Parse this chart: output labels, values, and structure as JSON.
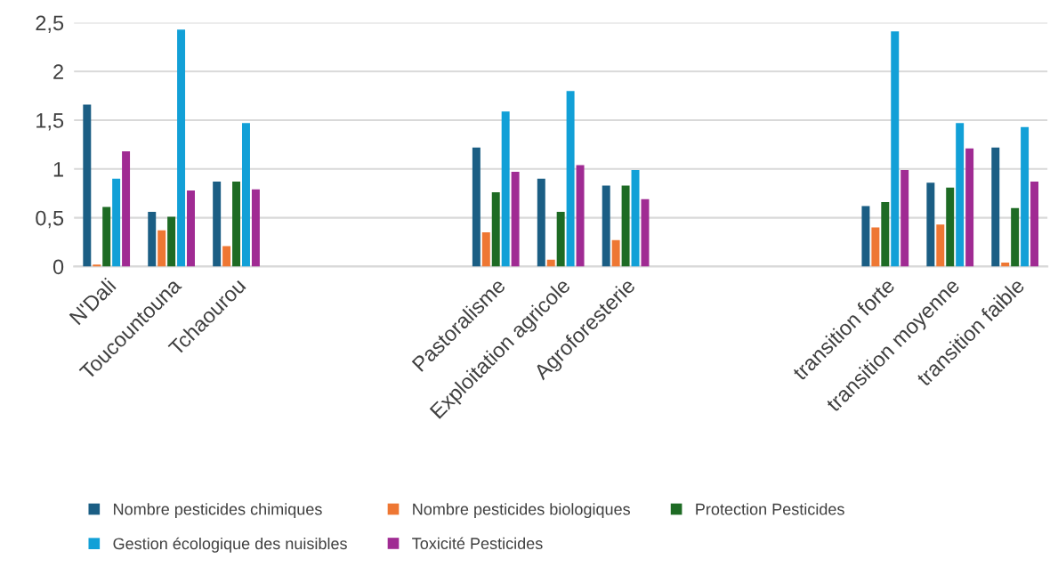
{
  "chart_data": {
    "type": "bar",
    "categories": [
      "N'Dali",
      "Toucountouna",
      "Tchaourou",
      null,
      null,
      null,
      "Pastoralisme",
      "Exploitation agricole",
      "Agroforesterie",
      null,
      null,
      null,
      "transition forte",
      "transition moyenne",
      "transition faible"
    ],
    "series": [
      {
        "name": "Nombre pesticides chimiques",
        "color": "#1b5e84",
        "values": [
          1.66,
          0.56,
          0.87,
          null,
          null,
          null,
          1.22,
          0.9,
          0.83,
          null,
          null,
          null,
          0.62,
          0.86,
          1.22
        ]
      },
      {
        "name": "Nombre pesticides biologiques",
        "color": "#ee7733",
        "values": [
          0.02,
          0.37,
          0.21,
          null,
          null,
          null,
          0.35,
          0.07,
          0.27,
          null,
          null,
          null,
          0.4,
          0.43,
          0.04
        ]
      },
      {
        "name": "Protection Pesticides",
        "color": "#1e6b24",
        "values": [
          0.61,
          0.51,
          0.87,
          null,
          null,
          null,
          0.76,
          0.56,
          0.83,
          null,
          null,
          null,
          0.66,
          0.81,
          0.6
        ]
      },
      {
        "name": "Gestion écologique des nuisibles",
        "color": "#12a0d7",
        "values": [
          0.9,
          2.43,
          1.47,
          null,
          null,
          null,
          1.59,
          1.8,
          0.99,
          null,
          null,
          null,
          2.41,
          1.47,
          1.43
        ]
      },
      {
        "name": "Toxicité Pesticides",
        "color": "#a02b93",
        "values": [
          1.18,
          0.78,
          0.79,
          null,
          null,
          null,
          0.97,
          1.04,
          0.69,
          null,
          null,
          null,
          0.99,
          1.21,
          0.87
        ]
      }
    ],
    "ylim": [
      0,
      2.5
    ],
    "yticks": [
      0,
      {
        "value": 0.5,
        "label": "0,5"
      },
      1,
      {
        "value": 1.5,
        "label": "1,5"
      },
      2,
      {
        "value": 2.5,
        "label": "2,5"
      }
    ],
    "grid": "y",
    "legend": "bottom"
  }
}
